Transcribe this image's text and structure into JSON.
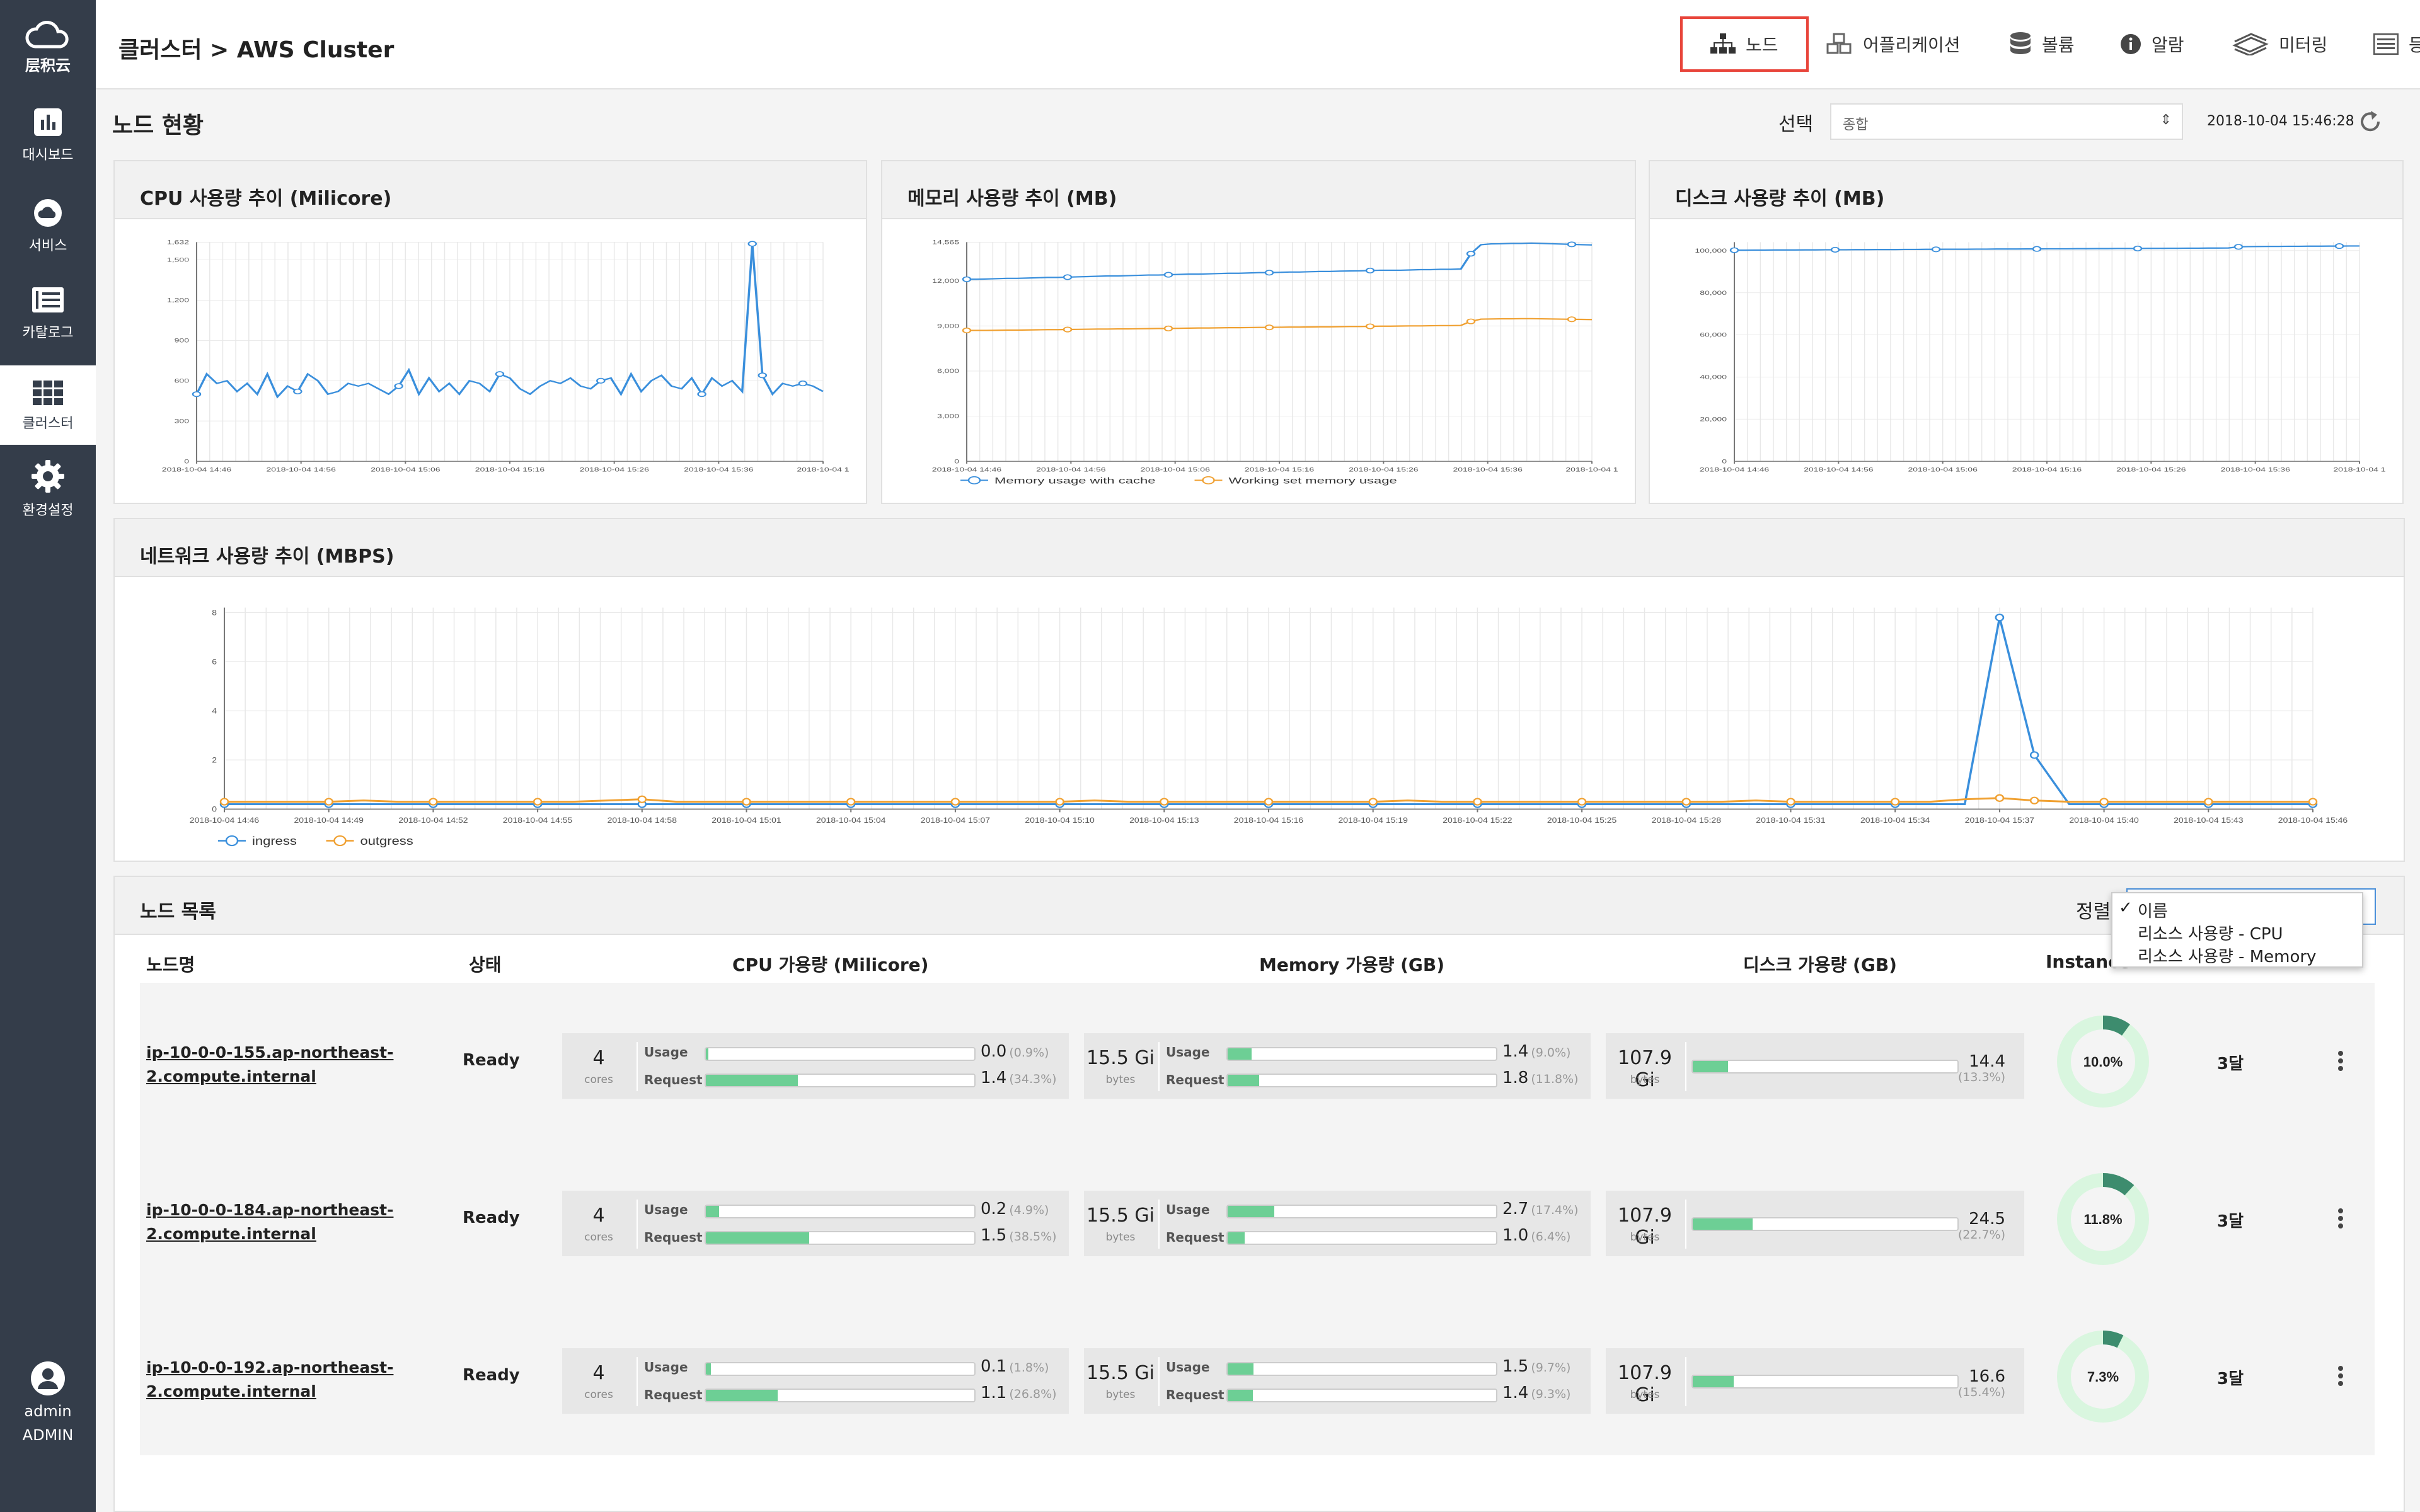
{
  "app": {
    "logo_text": "层积云"
  },
  "sidebar": {
    "items": [
      {
        "label": "대시보드",
        "icon": "bar-chart-icon"
      },
      {
        "label": "서비스",
        "icon": "cloud-icon"
      },
      {
        "label": "카탈로그",
        "icon": "book-icon"
      },
      {
        "label": "클러스터",
        "icon": "grid-icon"
      },
      {
        "label": "환경설정",
        "icon": "gear-icon"
      }
    ],
    "user": {
      "name": "admin",
      "role": "ADMIN"
    }
  },
  "header": {
    "breadcrumb": "클러스터 > AWS Cluster",
    "tabs": [
      {
        "label": "노드",
        "icon": "sitemap-icon",
        "active": true
      },
      {
        "label": "어플리케이션",
        "icon": "cubes-icon"
      },
      {
        "label": "볼륨",
        "icon": "database-icon"
      },
      {
        "label": "알람",
        "icon": "info-icon"
      },
      {
        "label": "미터링",
        "icon": "money-icon"
      },
      {
        "label": "등록관리",
        "icon": "list-icon"
      }
    ]
  },
  "overview": {
    "title": "노드 현황",
    "select_label": "선택",
    "select_value": "종합",
    "timestamp": "2018-10-04 15:46:28"
  },
  "charts": {
    "cpu": {
      "title": "CPU 사용량 추이 (Milicore)"
    },
    "memory": {
      "title": "메모리 사용량 추이 (MB)"
    },
    "disk": {
      "title": "디스크 사용량 추이 (MB)"
    },
    "network": {
      "title": "네트워크 사용량 추이 (MBPS)"
    }
  },
  "chart_data": [
    {
      "type": "line",
      "title": "CPU 사용량 추이 (Milicore)",
      "yticks": [
        "0",
        "300",
        "600",
        "900",
        "1,200",
        "1,500",
        "1,632"
      ],
      "ytick_values": [
        0,
        300,
        600,
        900,
        1200,
        1500,
        1632
      ],
      "ylim": [
        0,
        1632
      ],
      "x_labels": [
        "2018-10-04 14:46",
        "2018-10-04 14:56",
        "2018-10-04 15:06",
        "2018-10-04 15:16",
        "2018-10-04 15:26",
        "2018-10-04 15:36",
        "2018-10-04 1"
      ],
      "series": [
        {
          "color": "#3a8fdc",
          "values": [
            500,
            650,
            580,
            600,
            520,
            580,
            500,
            650,
            480,
            560,
            520,
            650,
            600,
            500,
            520,
            580,
            560,
            580,
            540,
            500,
            560,
            680,
            500,
            620,
            520,
            580,
            500,
            600,
            580,
            520,
            650,
            620,
            540,
            500,
            560,
            600,
            580,
            620,
            560,
            540,
            600,
            620,
            500,
            650,
            520,
            600,
            640,
            560,
            540,
            620,
            500,
            620,
            560,
            600,
            520,
            1620,
            640,
            500,
            580,
            560,
            580,
            560,
            520
          ]
        }
      ]
    },
    {
      "type": "line",
      "title": "메모리 사용량 추이 (MB)",
      "yticks": [
        "0",
        "3,000",
        "6,000",
        "9,000",
        "12,000",
        "14,565"
      ],
      "ytick_values": [
        0,
        3000,
        6000,
        9000,
        12000,
        14565
      ],
      "ylim": [
        0,
        14565
      ],
      "x_labels": [
        "2018-10-04 14:46",
        "2018-10-04 14:56",
        "2018-10-04 15:06",
        "2018-10-04 15:16",
        "2018-10-04 15:26",
        "2018-10-04 15:36",
        "2018-10-04 1"
      ],
      "legend": [
        "Memory usage with cache",
        "Working set memory usage"
      ],
      "series": [
        {
          "name": "Memory usage with cache",
          "color": "#3a8fdc",
          "values": [
            12100,
            12100,
            12120,
            12140,
            12160,
            12160,
            12180,
            12200,
            12220,
            12220,
            12240,
            12260,
            12280,
            12300,
            12320,
            12320,
            12340,
            12360,
            12380,
            12380,
            12400,
            12420,
            12440,
            12440,
            12460,
            12480,
            12500,
            12500,
            12520,
            12540,
            12540,
            12560,
            12580,
            12580,
            12600,
            12620,
            12620,
            12640,
            12650,
            12660,
            12680,
            12700,
            12700,
            12700,
            12720,
            12740,
            12740,
            12760,
            12760,
            12780,
            13800,
            14400,
            14450,
            14460,
            14480,
            14480,
            14500,
            14480,
            14460,
            14440,
            14420,
            14400,
            14380
          ]
        },
        {
          "name": "Working set memory usage",
          "color": "#f0a030",
          "values": [
            8700,
            8700,
            8700,
            8710,
            8720,
            8720,
            8730,
            8740,
            8750,
            8750,
            8760,
            8770,
            8780,
            8790,
            8790,
            8800,
            8800,
            8810,
            8820,
            8830,
            8830,
            8840,
            8850,
            8860,
            8860,
            8870,
            8880,
            8880,
            8890,
            8900,
            8900,
            8910,
            8920,
            8920,
            8930,
            8940,
            8940,
            8950,
            8960,
            8960,
            8970,
            8980,
            8980,
            8990,
            9000,
            9000,
            9010,
            9020,
            9020,
            9030,
            9300,
            9450,
            9460,
            9470,
            9470,
            9480,
            9480,
            9470,
            9460,
            9450,
            9440,
            9430,
            9420
          ]
        }
      ]
    },
    {
      "type": "line",
      "title": "디스크 사용량 추이 (MB)",
      "yticks": [
        "0",
        "20,000",
        "40,000",
        "60,000",
        "80,000",
        "100,000"
      ],
      "ytick_values": [
        0,
        20000,
        40000,
        60000,
        80000,
        100000
      ],
      "ylim": [
        0,
        104000
      ],
      "x_labels": [
        "2018-10-04 14:46",
        "2018-10-04 14:56",
        "2018-10-04 15:06",
        "2018-10-04 15:16",
        "2018-10-04 15:26",
        "2018-10-04 15:36",
        "2018-10-04 1"
      ],
      "series": [
        {
          "color": "#3a8fdc",
          "values": [
            100200,
            100200,
            100250,
            100250,
            100300,
            100300,
            100300,
            100350,
            100350,
            100400,
            100400,
            100400,
            100450,
            100450,
            100500,
            100500,
            100500,
            100550,
            100550,
            100600,
            100600,
            100650,
            100650,
            100650,
            100700,
            100700,
            100750,
            100750,
            100750,
            100800,
            100800,
            100850,
            100850,
            100850,
            100900,
            100900,
            100950,
            100950,
            101000,
            101000,
            101000,
            101050,
            101050,
            101100,
            101100,
            101150,
            101150,
            101200,
            101200,
            101250,
            101800,
            101900,
            101950,
            102000,
            102000,
            102050,
            102050,
            102100,
            102100,
            102150,
            102150,
            102200,
            102200
          ]
        }
      ]
    },
    {
      "type": "line",
      "title": "네트워크 사용량 추이 (MBPS)",
      "yticks": [
        "0",
        "2",
        "4",
        "6",
        "8"
      ],
      "ytick_values": [
        0,
        2,
        4,
        6,
        8
      ],
      "ylim": [
        0,
        8.2
      ],
      "x_labels": [
        "2018-10-04 14:46",
        "2018-10-04 14:49",
        "2018-10-04 14:52",
        "2018-10-04 14:55",
        "2018-10-04 14:58",
        "2018-10-04 15:01",
        "2018-10-04 15:04",
        "2018-10-04 15:07",
        "2018-10-04 15:10",
        "2018-10-04 15:13",
        "2018-10-04 15:16",
        "2018-10-04 15:19",
        "2018-10-04 15:22",
        "2018-10-04 15:25",
        "2018-10-04 15:28",
        "2018-10-04 15:31",
        "2018-10-04 15:34",
        "2018-10-04 15:37",
        "2018-10-04 15:40",
        "2018-10-04 15:43",
        "2018-10-04 15:46"
      ],
      "legend": [
        "ingress",
        "outgress"
      ],
      "series": [
        {
          "name": "ingress",
          "color": "#3a8fdc",
          "values": [
            0.2,
            0.2,
            0.2,
            0.2,
            0.2,
            0.2,
            0.2,
            0.2,
            0.2,
            0.2,
            0.2,
            0.2,
            0.2,
            0.2,
            0.2,
            0.2,
            0.2,
            0.2,
            0.2,
            0.2,
            0.2,
            0.2,
            0.2,
            0.2,
            0.2,
            0.2,
            0.2,
            0.2,
            0.2,
            0.2,
            0.2,
            0.2,
            0.2,
            0.2,
            0.2,
            0.2,
            0.2,
            0.2,
            0.2,
            0.2,
            0.2,
            0.2,
            0.2,
            0.2,
            0.2,
            0.2,
            0.2,
            0.2,
            0.2,
            0.2,
            0.2,
            7.8,
            2.2,
            0.2,
            0.2,
            0.2,
            0.2,
            0.2,
            0.2,
            0.2,
            0.2
          ]
        },
        {
          "name": "outgress",
          "color": "#f0a030",
          "values": [
            0.3,
            0.3,
            0.3,
            0.3,
            0.35,
            0.3,
            0.3,
            0.3,
            0.3,
            0.3,
            0.3,
            0.35,
            0.4,
            0.3,
            0.3,
            0.3,
            0.3,
            0.3,
            0.3,
            0.3,
            0.3,
            0.3,
            0.3,
            0.3,
            0.3,
            0.35,
            0.3,
            0.3,
            0.3,
            0.3,
            0.3,
            0.3,
            0.3,
            0.3,
            0.35,
            0.3,
            0.3,
            0.3,
            0.3,
            0.3,
            0.3,
            0.3,
            0.3,
            0.3,
            0.35,
            0.3,
            0.3,
            0.3,
            0.3,
            0.3,
            0.4,
            0.45,
            0.35,
            0.3,
            0.3,
            0.3,
            0.3,
            0.3,
            0.3,
            0.3,
            0.3
          ]
        }
      ]
    }
  ],
  "node_list": {
    "title": "노드 목록",
    "sort_label": "정렬",
    "sort_options": [
      {
        "label": "이름",
        "checked": true
      },
      {
        "label": "리소스 사용량 - CPU"
      },
      {
        "label": "리소스 사용량 - Memory"
      }
    ],
    "columns": [
      "노드명",
      "상태",
      "CPU 가용량 (Milicore)",
      "Memory 가용량 (GB)",
      "디스크 가용량 (GB)",
      "Instance"
    ],
    "usage_label": "Usage",
    "request_label": "Request",
    "cores_unit": "cores",
    "bytes_unit": "bytes",
    "rows": [
      {
        "name_line1": "ip-10-0-0-155.ap-northeast-",
        "name_line2": "2.compute.internal",
        "status": "Ready",
        "cpu_total": "4",
        "cpu_usage": "0.0",
        "cpu_usage_pct": "(0.9%)",
        "cpu_usage_frac": 0.009,
        "cpu_request": "1.4",
        "cpu_request_pct": "(34.3%)",
        "cpu_request_frac": 0.343,
        "mem_total": "15.5 Gi",
        "mem_usage": "1.4",
        "mem_usage_pct": "(9.0%)",
        "mem_usage_frac": 0.09,
        "mem_request": "1.8",
        "mem_request_pct": "(11.8%)",
        "mem_request_frac": 0.118,
        "disk_total": "107.9 Gi",
        "disk_used": "14.4",
        "disk_pct": "(13.3%)",
        "disk_frac": 0.133,
        "instance_pct": "10.0%",
        "instance_frac": 0.1,
        "age": "3달"
      },
      {
        "name_line1": "ip-10-0-0-184.ap-northeast-",
        "name_line2": "2.compute.internal",
        "status": "Ready",
        "cpu_total": "4",
        "cpu_usage": "0.2",
        "cpu_usage_pct": "(4.9%)",
        "cpu_usage_frac": 0.049,
        "cpu_request": "1.5",
        "cpu_request_pct": "(38.5%)",
        "cpu_request_frac": 0.385,
        "mem_total": "15.5 Gi",
        "mem_usage": "2.7",
        "mem_usage_pct": "(17.4%)",
        "mem_usage_frac": 0.174,
        "mem_request": "1.0",
        "mem_request_pct": "(6.4%)",
        "mem_request_frac": 0.064,
        "disk_total": "107.9 Gi",
        "disk_used": "24.5",
        "disk_pct": "(22.7%)",
        "disk_frac": 0.227,
        "instance_pct": "11.8%",
        "instance_frac": 0.118,
        "age": "3달"
      },
      {
        "name_line1": "ip-10-0-0-192.ap-northeast-",
        "name_line2": "2.compute.internal",
        "status": "Ready",
        "cpu_total": "4",
        "cpu_usage": "0.1",
        "cpu_usage_pct": "(1.8%)",
        "cpu_usage_frac": 0.018,
        "cpu_request": "1.1",
        "cpu_request_pct": "(26.8%)",
        "cpu_request_frac": 0.268,
        "mem_total": "15.5 Gi",
        "mem_usage": "1.5",
        "mem_usage_pct": "(9.7%)",
        "mem_usage_frac": 0.097,
        "mem_request": "1.4",
        "mem_request_pct": "(9.3%)",
        "mem_request_frac": 0.093,
        "disk_total": "107.9 Gi",
        "disk_used": "16.6",
        "disk_pct": "(15.4%)",
        "disk_frac": 0.154,
        "instance_pct": "7.3%",
        "instance_frac": 0.073,
        "age": "3달"
      }
    ]
  },
  "colors": {
    "accent": "#e8443a",
    "sidebar": "#343d4a",
    "line_blue": "#3a8fdc",
    "line_orange": "#f0a030",
    "bar_green": "#6dcf95",
    "donut_dark": "#3d8c6e",
    "donut_light": "#d9f6df"
  }
}
